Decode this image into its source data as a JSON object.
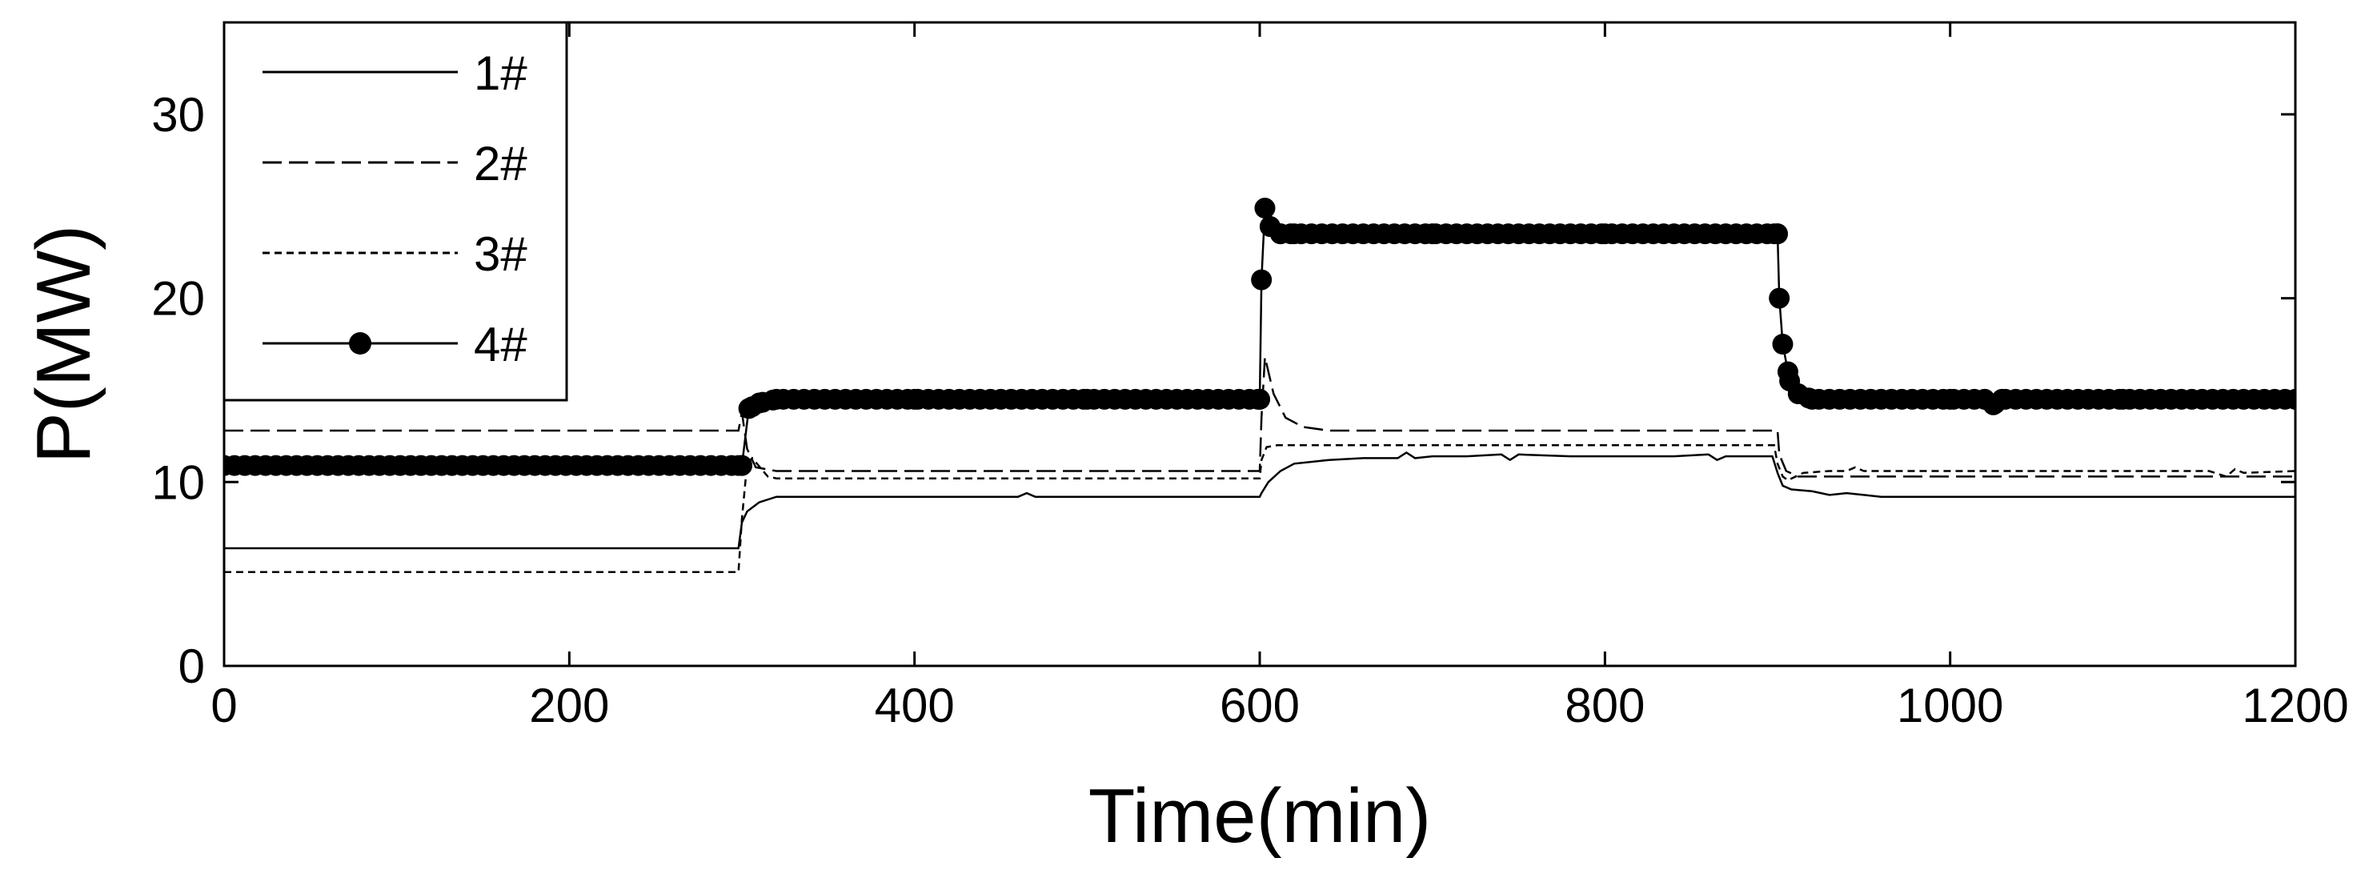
{
  "chart_data": {
    "type": "line",
    "title": "",
    "xlabel": "Time(min)",
    "ylabel": "P(MW)",
    "xlim": [
      0,
      1200
    ],
    "ylim": [
      0,
      35
    ],
    "xticks": [
      0,
      200,
      400,
      600,
      800,
      1000,
      1200
    ],
    "yticks": [
      0,
      10,
      20,
      30
    ],
    "grid": false,
    "legend_position": "top-left",
    "series": [
      {
        "name": "1#",
        "style": "solid",
        "color": "#000000",
        "x": [
          0,
          298,
          300,
          303,
          310,
          320,
          400,
          460,
          465,
          470,
          600,
          601,
          605,
          612,
          620,
          640,
          660,
          680,
          685,
          690,
          700,
          720,
          740,
          745,
          750,
          780,
          800,
          840,
          860,
          865,
          870,
          897,
          900,
          903,
          908,
          920,
          930,
          940,
          950,
          960,
          1000,
          1100,
          1200
        ],
        "y": [
          6.4,
          6.4,
          7.8,
          8.4,
          8.9,
          9.2,
          9.2,
          9.2,
          9.4,
          9.2,
          9.2,
          9.4,
          10.0,
          10.6,
          11.0,
          11.2,
          11.3,
          11.3,
          11.6,
          11.3,
          11.4,
          11.4,
          11.5,
          11.2,
          11.5,
          11.4,
          11.4,
          11.4,
          11.5,
          11.2,
          11.4,
          11.4,
          10.5,
          9.8,
          9.6,
          9.5,
          9.3,
          9.4,
          9.3,
          9.2,
          9.2,
          9.2,
          9.2
        ]
      },
      {
        "name": "2#",
        "style": "dashed",
        "color": "#000000",
        "x": [
          0,
          298,
          300,
          303,
          308,
          320,
          400,
          500,
          600,
          601,
          603,
          608,
          615,
          625,
          640,
          700,
          800,
          900,
          901,
          905,
          912,
          925,
          1000,
          1100,
          1200
        ],
        "y": [
          12.8,
          12.8,
          13.8,
          11.8,
          10.8,
          10.6,
          10.6,
          10.6,
          10.6,
          13.5,
          16.8,
          14.8,
          13.5,
          13.0,
          12.8,
          12.8,
          12.8,
          12.8,
          11.5,
          10.6,
          10.3,
          10.3,
          10.3,
          10.3,
          10.3
        ]
      },
      {
        "name": "3#",
        "style": "short-dashed",
        "color": "#000000",
        "x": [
          0,
          298,
          300,
          303,
          306,
          315,
          320,
          400,
          500,
          600,
          601,
          604,
          610,
          700,
          800,
          898,
          900,
          903,
          906,
          915,
          930,
          940,
          945,
          950,
          1000,
          1100,
          1150,
          1160,
          1165,
          1170,
          1200
        ],
        "y": [
          5.1,
          5.1,
          8.0,
          11.0,
          11.3,
          10.3,
          10.2,
          10.2,
          10.2,
          10.2,
          11.2,
          11.9,
          12.0,
          12.0,
          12.0,
          12.0,
          11.0,
          10.3,
          10.1,
          10.5,
          10.6,
          10.6,
          10.8,
          10.6,
          10.6,
          10.6,
          10.6,
          10.3,
          10.7,
          10.5,
          10.6
        ]
      },
      {
        "name": "4#",
        "style": "solid-with-circle-markers",
        "color": "#000000",
        "x": [
          0,
          298,
          300,
          304,
          310,
          320,
          400,
          500,
          599,
          600,
          601,
          603,
          606,
          612,
          620,
          700,
          800,
          898,
          900,
          901,
          903,
          907,
          912,
          920,
          1000,
          1020,
          1025,
          1030,
          1100,
          1200
        ],
        "y": [
          10.9,
          10.9,
          10.9,
          14.0,
          14.3,
          14.5,
          14.5,
          14.5,
          14.5,
          14.5,
          21.0,
          24.9,
          23.9,
          23.5,
          23.5,
          23.5,
          23.5,
          23.5,
          23.5,
          20.0,
          17.5,
          15.5,
          14.8,
          14.5,
          14.5,
          14.5,
          14.2,
          14.5,
          14.5,
          14.5
        ],
        "marker_step_min": 6
      }
    ]
  }
}
